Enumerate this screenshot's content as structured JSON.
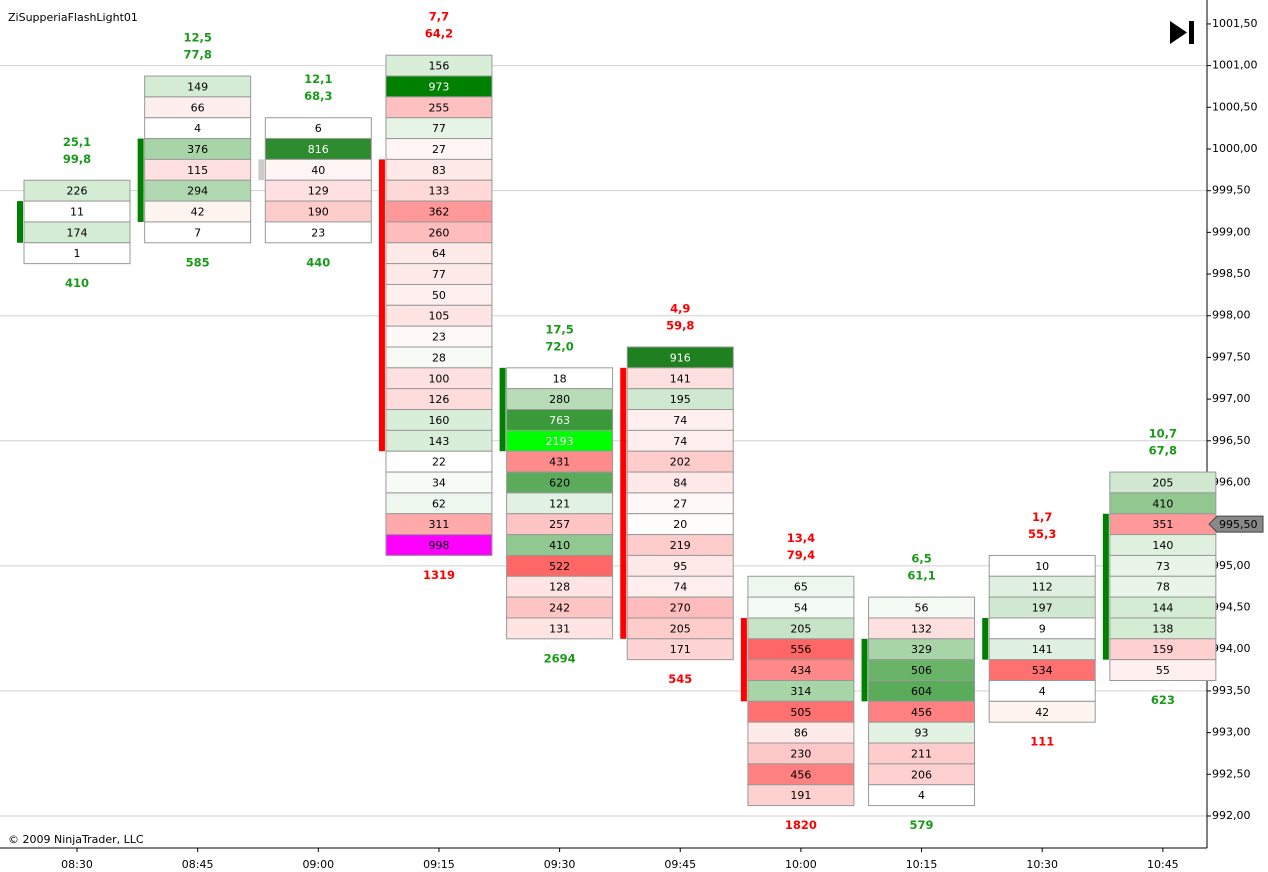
{
  "chart_data": {
    "type": "footprint",
    "title": "ZiSupperiaFlashLight01",
    "copyright": "© 2009 NinjaTrader, LLC",
    "categories": [
      "08:30",
      "08:45",
      "09:00",
      "09:15",
      "09:30",
      "09:45",
      "10:00",
      "10:15",
      "10:30",
      "10:45"
    ],
    "ylim": [
      991.616,
      1001.787
    ],
    "yticks": [
      {
        "value": 992.0,
        "label": "992,00"
      },
      {
        "value": 992.5,
        "label": "992,50"
      },
      {
        "value": 993.0,
        "label": "993,00"
      },
      {
        "value": 993.5,
        "label": "993,50"
      },
      {
        "value": 994.0,
        "label": "994,00"
      },
      {
        "value": 994.5,
        "label": "994,50"
      },
      {
        "value": 995.0,
        "label": "995,00"
      },
      {
        "value": 995.5,
        "label": "995,50"
      },
      {
        "value": 996.0,
        "label": "996,00"
      },
      {
        "value": 996.5,
        "label": "996,50"
      },
      {
        "value": 997.0,
        "label": "997,00"
      },
      {
        "value": 997.5,
        "label": "997,50"
      },
      {
        "value": 998.0,
        "label": "998,00"
      },
      {
        "value": 998.5,
        "label": "998,50"
      },
      {
        "value": 999.0,
        "label": "999,00"
      },
      {
        "value": 999.5,
        "label": "999,50"
      },
      {
        "value": 1000.0,
        "label": "1000,00"
      },
      {
        "value": 1000.5,
        "label": "1000,50"
      },
      {
        "value": 1001.0,
        "label": "1001,00"
      },
      {
        "value": 1001.5,
        "label": "1001,50"
      }
    ],
    "ygrid": [
      992,
      993.5,
      995,
      996.5,
      998,
      999.5,
      1001
    ],
    "tick_size": 0.25,
    "last_price": {
      "value": 995.5,
      "label": "995,50"
    },
    "bars": [
      {
        "top": 999.5,
        "cells": [
          226,
          11,
          174,
          1
        ],
        "cell_colors": [
          "#d4ecd4",
          "#ffffff",
          "#d4ecd4",
          "#ffffff"
        ],
        "values": [
          25.1,
          99.8
        ],
        "value_labels": [
          "25,1",
          "99,8"
        ],
        "total": 410,
        "color": "#1a9a1a",
        "marker": [
          999.25,
          999.0
        ],
        "marker_color": "#008000"
      },
      {
        "top": 1000.75,
        "cells": [
          149,
          66,
          4,
          376,
          115,
          294,
          42,
          7
        ],
        "cell_colors": [
          "#d4ecd4",
          "#ffeeee",
          "#ffffff",
          "#a8d5a8",
          "#ffe0e0",
          "#b0d8b0",
          "#fff5f0",
          "#ffffff"
        ],
        "values": [
          12.5,
          77.8
        ],
        "value_labels": [
          "12,5",
          "77,8"
        ],
        "total": 585,
        "color": "#1a9a1a",
        "marker": [
          1000.0,
          999.25
        ],
        "marker_color": "#008000"
      },
      {
        "top": 1000.25,
        "cells": [
          6,
          816,
          40,
          129,
          190,
          23
        ],
        "cell_colors": [
          "#ffffff",
          "#2e8b2e",
          "#fff5f5",
          "#ffe0e0",
          "#ffcccc",
          "#ffffff"
        ],
        "values": [
          12.1,
          68.3
        ],
        "value_labels": [
          "12,1",
          "68,3"
        ],
        "total": 440,
        "color": "#1a9a1a",
        "marker": [
          999.75,
          999.75
        ],
        "marker_color": "#cccccc"
      },
      {
        "top": 1001.0,
        "cells": [
          156,
          973,
          255,
          77,
          27,
          83,
          133,
          362,
          260,
          64,
          77,
          50,
          105,
          23,
          28,
          100,
          126,
          160,
          143,
          22,
          34,
          62,
          311,
          998
        ],
        "cell_colors": [
          "#d8eed8",
          "#008000",
          "#ffc0c0",
          "#e6f4e6",
          "#fff5f5",
          "#ffe8e8",
          "#ffd8d8",
          "#ff9999",
          "#ffbcbc",
          "#ffeaea",
          "#ffeaea",
          "#fff0f0",
          "#ffe4e4",
          "#fff8f8",
          "#f6fbf6",
          "#ffe0e0",
          "#ffdcdc",
          "#d8eed8",
          "#d8eed8",
          "#ffffff",
          "#f6fbf6",
          "#eef7ee",
          "#ffaaaa",
          "#ff00ff"
        ],
        "values": [
          7.7,
          64.2
        ],
        "value_labels": [
          "7,7",
          "64,2"
        ],
        "total": 1319,
        "color": "#ff0000",
        "marker": [
          999.75,
          996.5
        ],
        "marker_color": "#ff0000"
      },
      {
        "top": 997.25,
        "cells": [
          18,
          280,
          763,
          2193,
          431,
          620,
          121,
          257,
          410,
          522,
          128,
          242,
          131
        ],
        "cell_colors": [
          "#ffffff",
          "#b8dcb8",
          "#3a9a3a",
          "#00ff00",
          "#ff8c8c",
          "#5cab5c",
          "#e2f2e2",
          "#ffc4c4",
          "#90c890",
          "#ff6666",
          "#ffe4e4",
          "#ffc4c4",
          "#ffe4e4"
        ],
        "values": [
          17.5,
          72.0
        ],
        "value_labels": [
          "17,5",
          "72,0"
        ],
        "total": 2694,
        "color": "#1a9a1a",
        "marker": [
          997.25,
          996.5
        ],
        "marker_color": "#008000"
      },
      {
        "top": 997.5,
        "cells": [
          916,
          141,
          195,
          74,
          74,
          202,
          84,
          27,
          20,
          219,
          95,
          74,
          270,
          205,
          171
        ],
        "cell_colors": [
          "#1e801e",
          "#ffe0e0",
          "#cfe8cf",
          "#fff0f0",
          "#ffeeee",
          "#ffcccc",
          "#ffe8e8",
          "#fff8f8",
          "#fffcfc",
          "#ffcccc",
          "#ffe8e8",
          "#ffeeee",
          "#ffbcbc",
          "#ffcccc",
          "#ffd4d4"
        ],
        "values": [
          4.9,
          59.8
        ],
        "value_labels": [
          "4,9",
          "59,8"
        ],
        "total": 545,
        "color": "#ff0000",
        "marker": [
          997.25,
          994.25
        ],
        "marker_color": "#ff0000"
      },
      {
        "top": 994.75,
        "cells": [
          65,
          54,
          205,
          556,
          434,
          314,
          505,
          86,
          230,
          456,
          191
        ],
        "cell_colors": [
          "#eef7ee",
          "#f4faf4",
          "#c8e4c8",
          "#ff6666",
          "#ff8888",
          "#a8d5a8",
          "#ff7070",
          "#ffeaea",
          "#ffc8c8",
          "#ff8080",
          "#ffd0d0"
        ],
        "values": [
          13.4,
          79.4
        ],
        "value_labels": [
          "13,4",
          "79,4"
        ],
        "total": 1820,
        "color": "#ff0000",
        "marker": [
          994.25,
          993.5
        ],
        "marker_color": "#ff0000"
      },
      {
        "top": 994.5,
        "cells": [
          56,
          132,
          329,
          506,
          604,
          456,
          93,
          211,
          206,
          4
        ],
        "cell_colors": [
          "#f4faf4",
          "#ffe0e0",
          "#a8d5a8",
          "#6ab46a",
          "#5aab5a",
          "#ff8080",
          "#e4f2e4",
          "#ffcccc",
          "#ffd0d0",
          "#ffffff"
        ],
        "values": [
          6.5,
          61.1
        ],
        "value_labels": [
          "6,5",
          "61,1"
        ],
        "total": 579,
        "color": "#1a9a1a",
        "marker": [
          994.0,
          993.5
        ],
        "marker_color": "#008000"
      },
      {
        "top": 995.0,
        "cells": [
          10,
          112,
          197,
          9,
          141,
          534,
          4,
          42
        ],
        "cell_colors": [
          "#ffffff",
          "#e0f0e0",
          "#cfe8cf",
          "#ffffff",
          "#e0f0e0",
          "#ff7070",
          "#ffffff",
          "#fff4f0"
        ],
        "values": [
          1.7,
          55.3
        ],
        "value_labels": [
          "1,7",
          "55,3"
        ],
        "total": 111,
        "color": "#ff0000",
        "marker": [
          994.25,
          994.0
        ],
        "marker_color": "#008000"
      },
      {
        "top": 996.0,
        "cells": [
          205,
          410,
          351,
          140,
          73,
          78,
          144,
          138,
          159,
          55
        ],
        "cell_colors": [
          "#cfe8cf",
          "#90c890",
          "#ff9999",
          "#dff0df",
          "#eaf5ea",
          "#eaf5ea",
          "#d4ecd4",
          "#d4ecd4",
          "#ffd0d0",
          "#fff0f0"
        ],
        "values": [
          10.7,
          67.8
        ],
        "value_labels": [
          "10,7",
          "67,8"
        ],
        "total": 623,
        "color": "#1a9a1a",
        "marker": [
          995.5,
          994.0
        ],
        "marker_color": "#008000"
      }
    ]
  }
}
